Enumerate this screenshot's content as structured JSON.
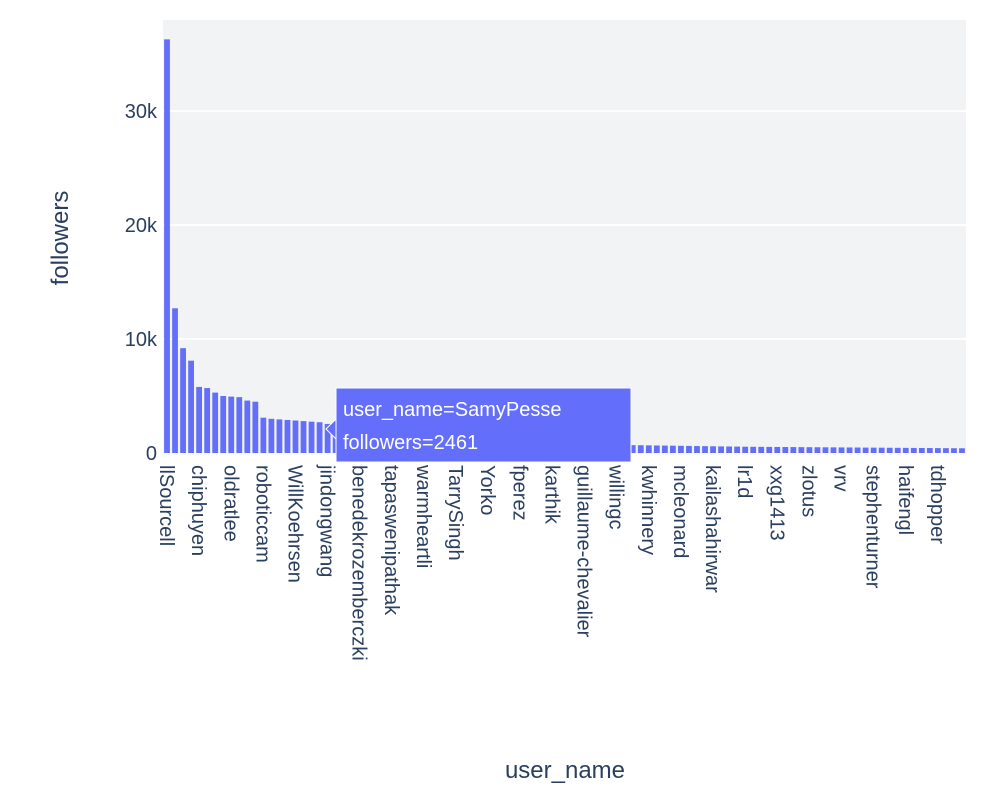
{
  "chart_data": {
    "type": "bar",
    "title": "",
    "xlabel": "user_name",
    "ylabel": "followers",
    "ylim": [
      0,
      38000
    ],
    "yticks": [
      0,
      10000,
      20000,
      30000
    ],
    "ytick_labels": [
      "0",
      "10k",
      "20k",
      "30k"
    ],
    "grid": true,
    "bar_color": "#636efa",
    "plot_bg": "#f2f3f4",
    "x_tick_labels": [
      {
        "index": 0,
        "label": "llSourcell"
      },
      {
        "index": 4,
        "label": "chiphuyen"
      },
      {
        "index": 8,
        "label": "oldratlee"
      },
      {
        "index": 12,
        "label": "roboticcam"
      },
      {
        "index": 16,
        "label": "WillKoehrsen"
      },
      {
        "index": 20,
        "label": "jindongwang"
      },
      {
        "index": 24,
        "label": "benedekrozemberczki"
      },
      {
        "index": 28,
        "label": "tapaswenipathak"
      },
      {
        "index": 32,
        "label": "warmheartli"
      },
      {
        "index": 36,
        "label": "TarrySingh"
      },
      {
        "index": 40,
        "label": "Yorko"
      },
      {
        "index": 44,
        "label": "fperez"
      },
      {
        "index": 48,
        "label": "karthik"
      },
      {
        "index": 52,
        "label": "guillaume-chevalier"
      },
      {
        "index": 56,
        "label": "willingc"
      },
      {
        "index": 60,
        "label": "kwhinnery"
      },
      {
        "index": 64,
        "label": "mcleonard"
      },
      {
        "index": 68,
        "label": "kailashahirwar"
      },
      {
        "index": 72,
        "label": "lr1d"
      },
      {
        "index": 76,
        "label": "xxg1413"
      },
      {
        "index": 80,
        "label": "zlotus"
      },
      {
        "index": 84,
        "label": "vrv"
      },
      {
        "index": 88,
        "label": "stephenturner"
      },
      {
        "index": 92,
        "label": "haifengl"
      },
      {
        "index": 96,
        "label": "tdhopper"
      }
    ],
    "values": [
      36300,
      12700,
      9200,
      8100,
      5800,
      5700,
      5300,
      5000,
      4950,
      4900,
      4600,
      4500,
      3100,
      3000,
      2950,
      2900,
      2850,
      2800,
      2750,
      2700,
      2550,
      2500,
      2461,
      2300,
      2100,
      1900,
      1800,
      1700,
      1600,
      1500,
      1400,
      1350,
      1300,
      1250,
      1200,
      1150,
      1100,
      1050,
      1000,
      980,
      960,
      940,
      920,
      900,
      880,
      860,
      840,
      820,
      800,
      790,
      780,
      770,
      760,
      750,
      740,
      730,
      720,
      700,
      690,
      680,
      670,
      660,
      650,
      640,
      630,
      620,
      610,
      600,
      590,
      580,
      570,
      560,
      550,
      545,
      540,
      535,
      530,
      525,
      520,
      515,
      510,
      505,
      500,
      495,
      490,
      485,
      480,
      475,
      470,
      465,
      460,
      455,
      450,
      445,
      440,
      435,
      430,
      425,
      420,
      415
    ],
    "hover": {
      "index": 22,
      "line1": "user_name=SamyPesse",
      "line2": "followers=2461"
    }
  }
}
